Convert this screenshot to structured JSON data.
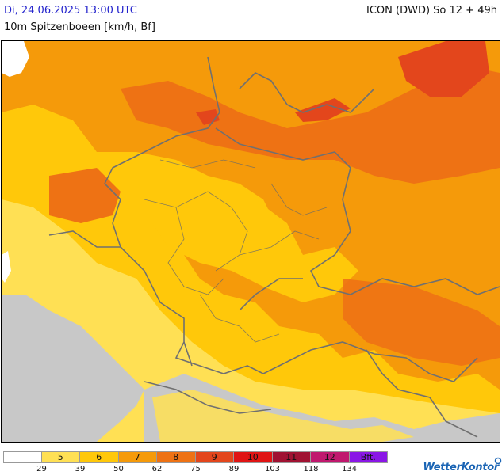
{
  "header": {
    "datetime": "Di, 24.06.2025 13:00 UTC",
    "model_run": "ICON (DWD) So 12 + 49h",
    "parameter": "10m Spitzenboeen [km/h, Bf]"
  },
  "map": {
    "colors": {
      "no_data": "#c8c8c8",
      "bf4": "#ffffff",
      "bf5": "#ffe054",
      "bf6": "#ffc80a",
      "bf7": "#f59a0a",
      "bf8": "#ee7214",
      "bf9": "#e3461c",
      "borders": "#707070"
    }
  },
  "legend": {
    "cells": [
      {
        "label": "",
        "color": "#ffffff"
      },
      {
        "label": "5",
        "color": "#ffe054"
      },
      {
        "label": "6",
        "color": "#ffc80a"
      },
      {
        "label": "7",
        "color": "#f59a0a"
      },
      {
        "label": "8",
        "color": "#ee7214"
      },
      {
        "label": "9",
        "color": "#e3461c"
      },
      {
        "label": "10",
        "color": "#e01414"
      },
      {
        "label": "11",
        "color": "#a01232"
      },
      {
        "label": "12",
        "color": "#c0186e"
      },
      {
        "label": "Bft.",
        "color": "#8a16e6"
      }
    ],
    "ticks": [
      "29",
      "39",
      "50",
      "62",
      "75",
      "89",
      "103",
      "118",
      "134"
    ]
  },
  "brand": {
    "name": "WetterKontor"
  }
}
